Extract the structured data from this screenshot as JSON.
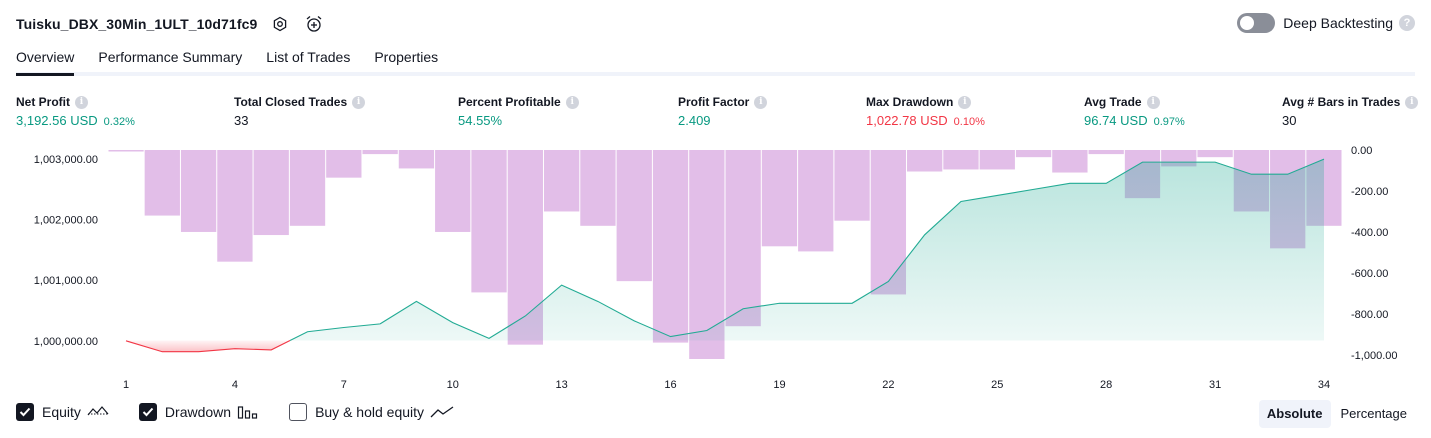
{
  "header": {
    "title": "Tuisku_DBX_30Min_1ULT_10d71fc9",
    "settings_icon": "gear-icon",
    "alert_icon": "alarm-add-icon",
    "deep_backtesting_label": "Deep Backtesting",
    "deep_backtesting_enabled": false
  },
  "tabs": [
    {
      "label": "Overview",
      "active": true
    },
    {
      "label": "Performance Summary",
      "active": false
    },
    {
      "label": "List of Trades",
      "active": false
    },
    {
      "label": "Properties",
      "active": false
    }
  ],
  "metrics": [
    {
      "label": "Net Profit",
      "value": "3,192.56 USD",
      "pct": "0.32%",
      "tone": "pos"
    },
    {
      "label": "Total Closed Trades",
      "value": "33",
      "pct": "",
      "tone": "neutral"
    },
    {
      "label": "Percent Profitable",
      "value": "54.55%",
      "pct": "",
      "tone": "pos"
    },
    {
      "label": "Profit Factor",
      "value": "2.409",
      "pct": "",
      "tone": "pos"
    },
    {
      "label": "Max Drawdown",
      "value": "1,022.78 USD",
      "pct": "0.10%",
      "tone": "neg"
    },
    {
      "label": "Avg Trade",
      "value": "96.74 USD",
      "pct": "0.97%",
      "tone": "pos"
    },
    {
      "label": "Avg # Bars in Trades",
      "value": "30",
      "pct": "",
      "tone": "neutral"
    }
  ],
  "legend": {
    "equity": {
      "label": "Equity",
      "checked": true
    },
    "drawdown": {
      "label": "Drawdown",
      "checked": true
    },
    "buy_hold": {
      "label": "Buy & hold equity",
      "checked": false
    }
  },
  "modes": {
    "absolute": "Absolute",
    "percentage": "Percentage",
    "active": "absolute"
  },
  "colors": {
    "equity_pos": "#22ab94",
    "equity_neg": "#f23645",
    "drawdown": "#ce93d8",
    "text": "#131722"
  },
  "chart_data": {
    "type": "line",
    "x_ticks": [
      1,
      4,
      7,
      10,
      13,
      16,
      19,
      22,
      25,
      28,
      31,
      34
    ],
    "y_left_ticks": [
      "1,000,000.00",
      "1,001,000.00",
      "1,002,000.00",
      "1,003,000.00"
    ],
    "y_left_tick_values": [
      1000000,
      1001000,
      1002000,
      1003000
    ],
    "y_left_range": [
      999700,
      1003150
    ],
    "y_right_ticks": [
      "0.00",
      "-200.00",
      "-400.00",
      "-600.00",
      "-800.00",
      "-1,000.00"
    ],
    "y_right_tick_values": [
      0,
      -200,
      -400,
      -600,
      -800,
      -1000
    ],
    "y_right_range": [
      -1020,
      0
    ],
    "series": [
      {
        "name": "Equity",
        "x": [
          1,
          2,
          3,
          4,
          5,
          6,
          7,
          8,
          9,
          10,
          11,
          12,
          13,
          14,
          15,
          16,
          17,
          18,
          19,
          20,
          21,
          22,
          23,
          24,
          25,
          26,
          27,
          28,
          29,
          30,
          31,
          32,
          33,
          34
        ],
        "values": [
          1000000,
          999820,
          999820,
          999870,
          999850,
          1000150,
          1000220,
          1000280,
          1000650,
          1000300,
          1000040,
          1000410,
          1000920,
          1000650,
          1000330,
          1000070,
          1000170,
          1000530,
          1000620,
          1000620,
          1000620,
          1000980,
          1001750,
          1002300,
          1002400,
          1002500,
          1002600,
          1002600,
          1002950,
          1002950,
          1002950,
          1002750,
          1002750,
          1003000
        ]
      },
      {
        "name": "Drawdown",
        "x": [
          1,
          2,
          3,
          4,
          5,
          6,
          7,
          8,
          9,
          10,
          11,
          12,
          13,
          14,
          15,
          16,
          17,
          18,
          19,
          20,
          21,
          22,
          23,
          24,
          25,
          26,
          27,
          28,
          29,
          30,
          31,
          32,
          33,
          34
        ],
        "values": [
          -5,
          -320,
          -400,
          -545,
          -415,
          -370,
          -135,
          -20,
          -90,
          -400,
          -695,
          -950,
          -300,
          -370,
          -640,
          -940,
          -1020,
          -860,
          -470,
          -495,
          -345,
          -705,
          -105,
          -95,
          -95,
          -35,
          -110,
          -20,
          -235,
          -80,
          -35,
          -300,
          -480,
          -370
        ]
      }
    ]
  }
}
